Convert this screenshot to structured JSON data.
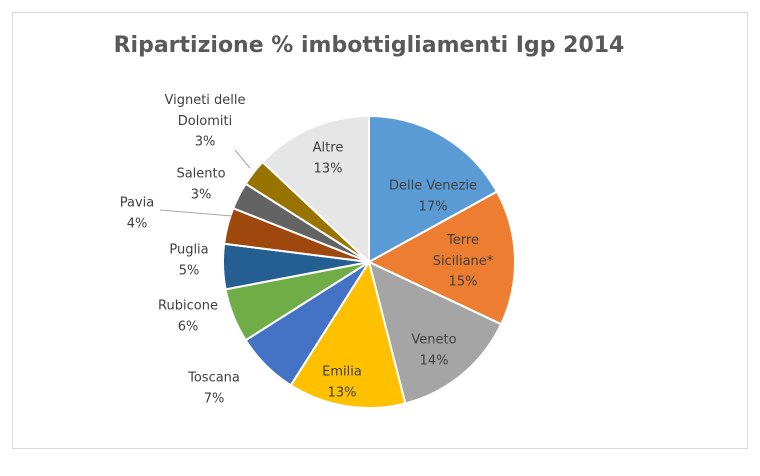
{
  "chart_data": {
    "type": "pie",
    "title": "Ripartizione % imbottigliamenti Igp 2014",
    "categories": [
      "Delle Venezie",
      "Terre Siciliane*",
      "Veneto",
      "Emilia",
      "Toscana",
      "Rubicone",
      "Puglia",
      "Pavia",
      "Salento",
      "Vigneti delle Dolomiti",
      "Altre"
    ],
    "values": [
      17,
      15,
      14,
      13,
      7,
      6,
      5,
      4,
      3,
      3,
      13
    ],
    "value_labels": [
      "17%",
      "15%",
      "14%",
      "13%",
      "7%",
      "6%",
      "5%",
      "4%",
      "3%",
      "3%",
      "13%"
    ],
    "colors": [
      "#5b9bd5",
      "#ed7d31",
      "#a5a5a5",
      "#ffc000",
      "#4472c4",
      "#70ad47",
      "#255e91",
      "#9e480e",
      "#636363",
      "#997300",
      "#e7e6e6"
    ]
  }
}
